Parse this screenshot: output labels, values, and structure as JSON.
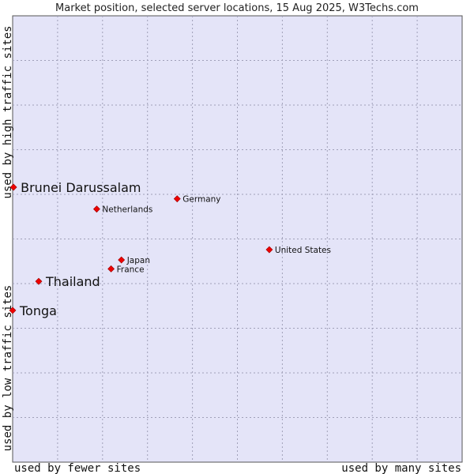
{
  "chart_data": {
    "type": "scatter",
    "title": "Market position, selected server locations, 15 Aug 2025, W3Techs.com",
    "xlabel_low": "used by fewer sites",
    "xlabel_high": "used by many sites",
    "ylabel_low": "used by low traffic sites",
    "ylabel_high": "used by high traffic sites",
    "xlim": [
      0,
      100
    ],
    "ylim": [
      0,
      100
    ],
    "grid": true,
    "marker_color": "#ee0000",
    "plot_background": "#e4e4f8",
    "points": [
      {
        "name": "Brunei Darussalam",
        "x": 0.2,
        "y": 61.6,
        "highlight": true
      },
      {
        "name": "Thailand",
        "x": 5.8,
        "y": 40.5,
        "highlight": true
      },
      {
        "name": "Tonga",
        "x": 0.0,
        "y": 34.0,
        "highlight": true
      },
      {
        "name": "Germany",
        "x": 36.6,
        "y": 59.0,
        "highlight": false
      },
      {
        "name": "Netherlands",
        "x": 18.7,
        "y": 56.7,
        "highlight": false
      },
      {
        "name": "United States",
        "x": 57.1,
        "y": 47.6,
        "highlight": false
      },
      {
        "name": "Japan",
        "x": 24.2,
        "y": 45.3,
        "highlight": false
      },
      {
        "name": "France",
        "x": 21.9,
        "y": 43.3,
        "highlight": false
      }
    ]
  }
}
